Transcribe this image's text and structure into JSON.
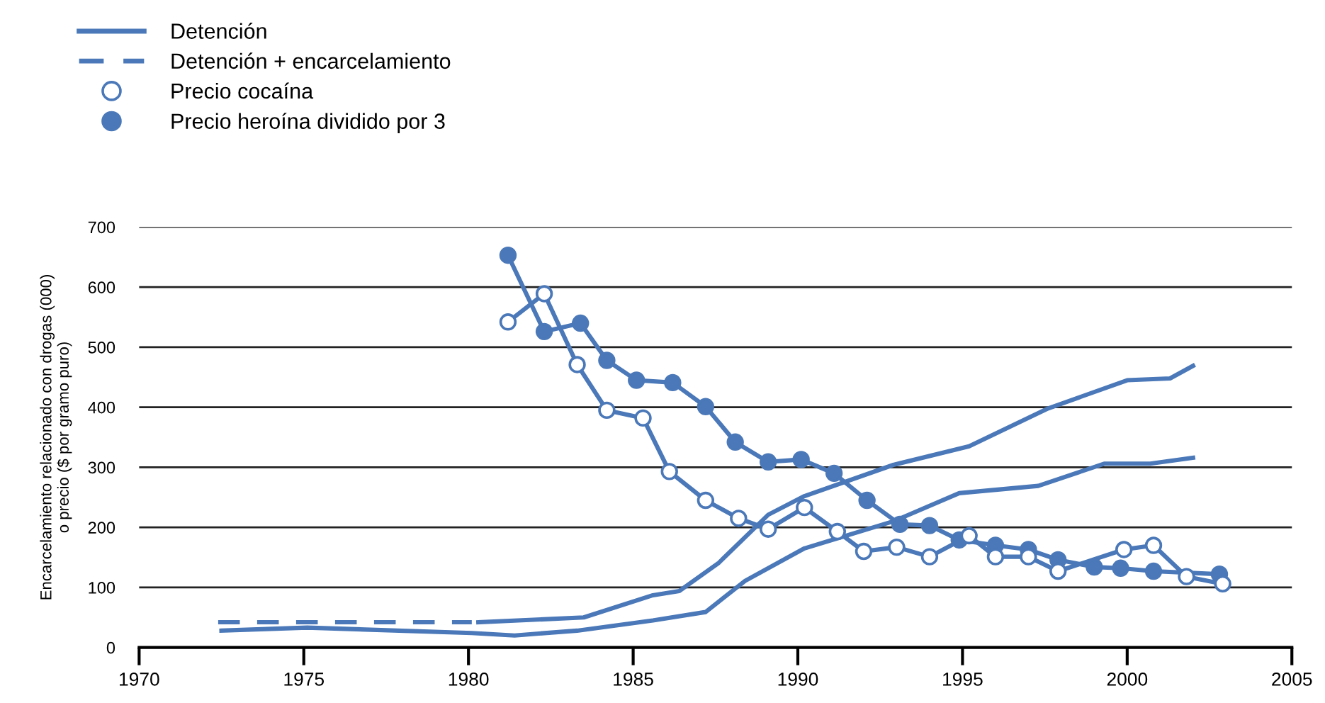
{
  "chart_data": {
    "type": "line",
    "ylabel": "Encarcelamiento relacionado con drogas (000)\no precio ($ por gramo puro)",
    "xlim": [
      1970,
      2005
    ],
    "xticks": [
      1970,
      1975,
      1980,
      1985,
      1990,
      1995,
      2000,
      2005
    ],
    "ylim": [
      0,
      700
    ],
    "yticks": [
      0,
      100,
      200,
      300,
      400,
      500,
      600,
      700
    ],
    "grid": "y",
    "legend": "top left",
    "line_style": "solid",
    "series": [
      {
        "name": "Detención",
        "color": "#4a78b8",
        "marker": "none",
        "x": [
          1972.5,
          1975.1,
          1980.1,
          1981.4,
          1983.3,
          1985.6,
          1987.2,
          1988.4,
          1990.2,
          1992.9,
          1994.9,
          1997.3,
          1999.3,
          2000.7,
          2002.0
        ],
        "values": [
          28,
          33,
          24,
          20,
          28,
          45,
          59,
          111,
          165,
          210,
          257,
          269,
          306,
          306,
          316
        ]
      },
      {
        "name": "Detención + encarcelamiento",
        "color": "#4a78b8",
        "marker": "none",
        "line_style": "dashed",
        "x": [
          1972.4,
          1980.1
        ],
        "values": [
          42,
          42
        ]
      },
      {
        "color": "#4a78b8",
        "marker": "none",
        "x": [
          1980.3,
          1983.5,
          1985.6,
          1986.4,
          1987.6,
          1989.1,
          1990.2,
          1992.9,
          1995.2,
          1997.6,
          2000.0,
          2001.3,
          2002.0
        ],
        "values": [
          42,
          50,
          87,
          94,
          141,
          221,
          252,
          304,
          335,
          398,
          445,
          448,
          469
        ]
      },
      {
        "name": "Precio cocaína",
        "color": "#4a78b8",
        "marker": "circle",
        "colors": [
          "#ffffff",
          "#ffffff",
          "#ffffff",
          "#ffffff",
          "#ffffff",
          "#ffffff",
          "#ffffff",
          "#ffffff",
          "#ffffff",
          "#ffffff",
          "#ffffff",
          "#ffffff",
          "#ffffff",
          "#ffffff",
          "#ffffff",
          "#ffffff",
          "#ffffff",
          "#ffffff",
          "#ffffff",
          "#ffffff",
          "#ffffff",
          "#ffffff"
        ],
        "x": [
          1981.2,
          1982.3,
          1983.3,
          1984.2,
          1985.3,
          1986.1,
          1987.2,
          1988.2,
          1989.1,
          1990.2,
          1991.2,
          1992.0,
          1993.0,
          1994.0,
          1995.2,
          1996.0,
          1997.0,
          1997.9,
          1999.9,
          2000.8,
          2001.8,
          2002.9
        ],
        "values": [
          542,
          589,
          471,
          395,
          382,
          293,
          245,
          215,
          197,
          233,
          193,
          160,
          167,
          151,
          186,
          151,
          151,
          127,
          163,
          170,
          118,
          106
        ]
      },
      {
        "name": "Precio heroína dividido por 3",
        "color": "#4a78b8",
        "marker": "circle",
        "x": [
          1981.2,
          1982.3,
          1983.4,
          1984.2,
          1985.1,
          1986.2,
          1987.2,
          1988.1,
          1989.1,
          1990.1,
          1991.1,
          1992.1,
          1993.1,
          1994.0,
          1994.9,
          1996.0,
          1997.0,
          1997.9,
          1999.0,
          1999.8,
          2000.8,
          2002.8
        ],
        "values": [
          653,
          526,
          540,
          478,
          445,
          441,
          401,
          342,
          309,
          313,
          290,
          245,
          205,
          203,
          179,
          170,
          163,
          146,
          134,
          132,
          127,
          122
        ]
      }
    ]
  }
}
